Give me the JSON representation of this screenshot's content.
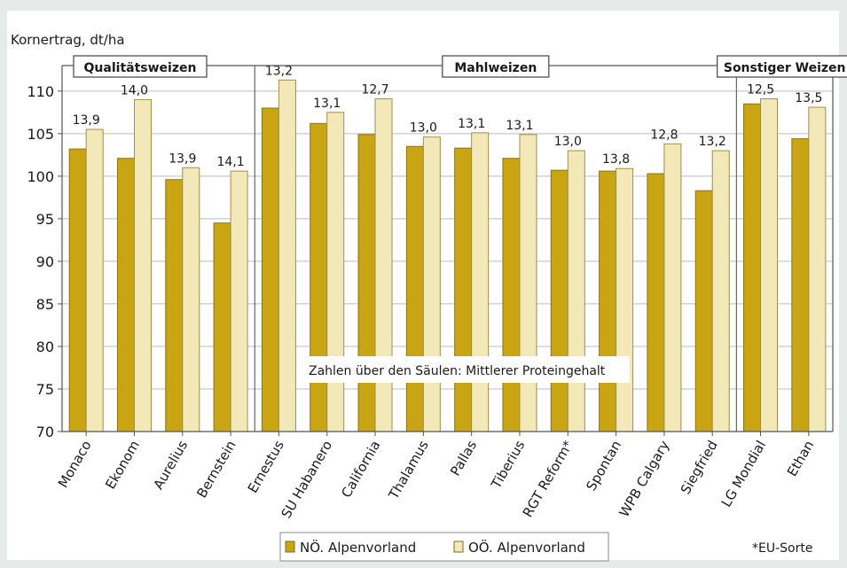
{
  "chart_data": {
    "type": "bar",
    "ylabel": "Kornertrag, dt/ha",
    "ylim": [
      70,
      113
    ],
    "yticks": [
      70,
      75,
      80,
      85,
      90,
      95,
      100,
      105,
      110
    ],
    "grid": true,
    "groups": [
      {
        "label": "Qualitätsweizen",
        "categories": [
          "Monaco",
          "Ekonom",
          "Aurelius",
          "Bernstein"
        ]
      },
      {
        "label": "Mahlweizen",
        "categories": [
          "Ernestus",
          "SU Habanero",
          "California",
          "Thalamus",
          "Pallas",
          "Tiberius",
          "RGT Reform*",
          "Spontan",
          "WPB Calgary",
          "Siegfried"
        ]
      },
      {
        "label": "Sonstiger Weizen",
        "categories": [
          "LG Mondial",
          "Ethan"
        ]
      }
    ],
    "categories": [
      "Monaco",
      "Ekonom",
      "Aurelius",
      "Bernstein",
      "Ernestus",
      "SU Habanero",
      "California",
      "Thalamus",
      "Pallas",
      "Tiberius",
      "RGT Reform*",
      "Spontan",
      "WPB Calgary",
      "Siegfried",
      "LG Mondial",
      "Ethan"
    ],
    "series": [
      {
        "name": "NÖ. Alpenvorland",
        "color": "#c9a514",
        "values": [
          103.2,
          102.1,
          99.6,
          94.5,
          108.0,
          106.2,
          104.9,
          103.5,
          103.3,
          102.1,
          100.7,
          100.6,
          100.3,
          98.3,
          108.5,
          104.4
        ]
      },
      {
        "name": "OÖ. Alpenvorland",
        "color": "#f2e8b8",
        "values": [
          105.5,
          109.0,
          101.0,
          100.6,
          111.3,
          107.5,
          109.1,
          104.6,
          105.1,
          104.9,
          103.0,
          100.9,
          103.8,
          103.0,
          109.1,
          108.1
        ]
      }
    ],
    "data_labels": [
      "13,9",
      "14,0",
      "13,9",
      "14,1",
      "13,2",
      "13,1",
      "12,7",
      "13,0",
      "13,1",
      "13,1",
      "13,0",
      "13,8",
      "12,8",
      "13,2",
      "12,5",
      "13,5"
    ],
    "annotation": "Zahlen über den Säulen: Mittlerer Proteingehalt",
    "footnote": "*EU-Sorte",
    "legend_position": "bottom"
  }
}
